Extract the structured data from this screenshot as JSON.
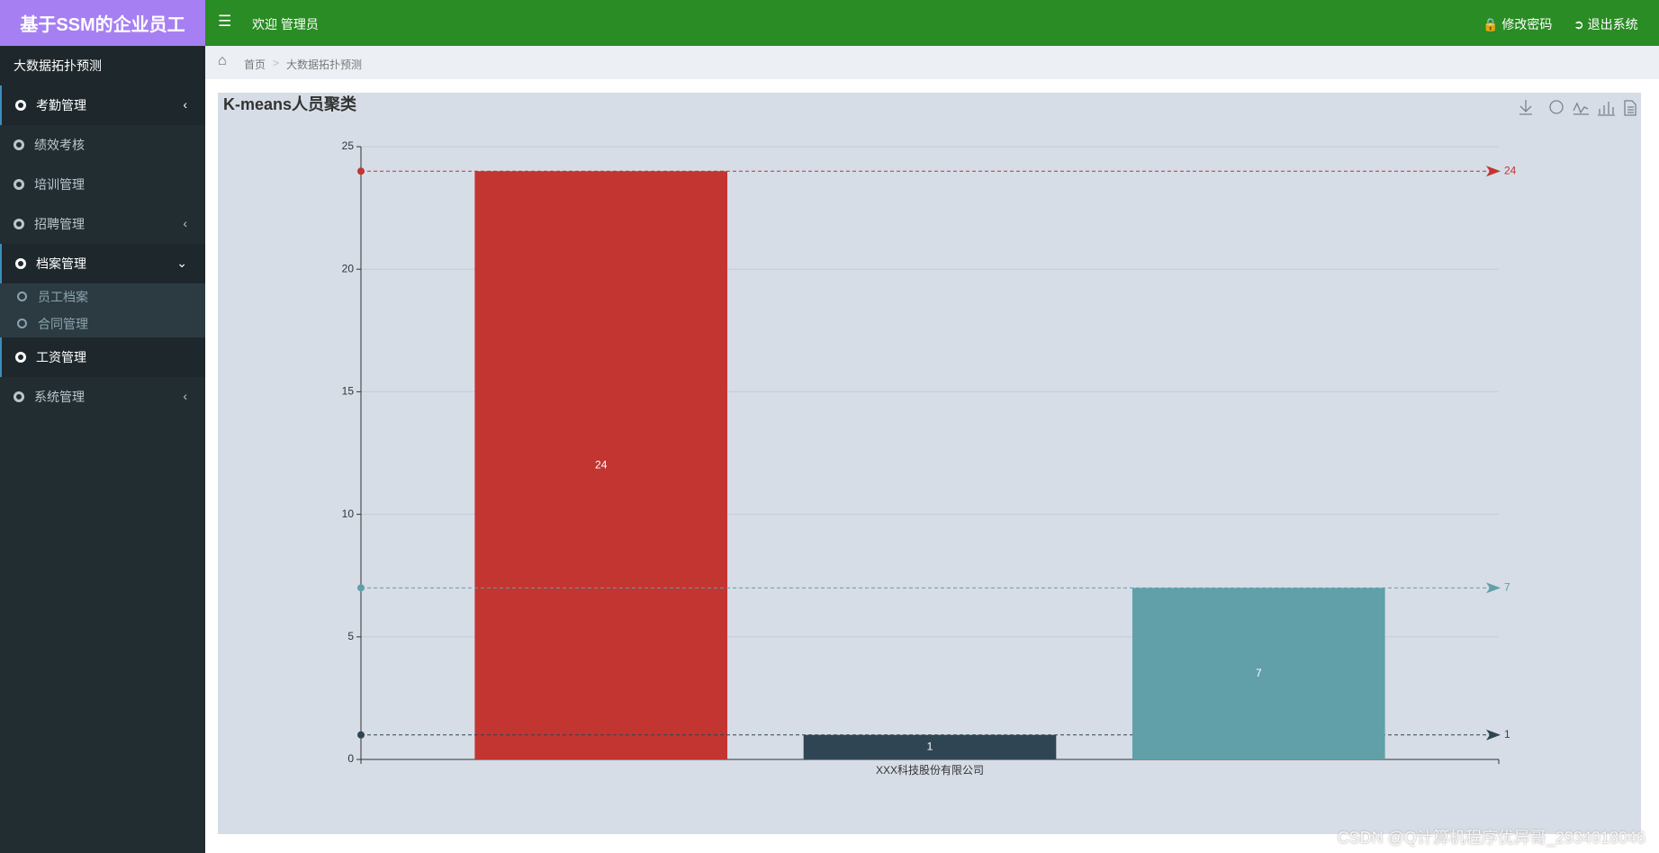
{
  "header": {
    "title": "基于SSM的企业员工",
    "welcome": "欢迎 管理员",
    "links": [
      "修改密码",
      "退出系统"
    ]
  },
  "sidebar": {
    "top": "大数据拓扑预测",
    "menu": [
      "考勤管理",
      "绩效考核",
      "培训管理",
      "招聘管理",
      "档案管理",
      "工资管理",
      "系统管理"
    ],
    "submenu": [
      "员工档案",
      "合同管理"
    ]
  },
  "breadcrumb": [
    "首页",
    "大数据拓扑预测"
  ],
  "chart_data": {
    "type": "bar",
    "title": "K-means人员聚类",
    "categories": [
      "XXX科技股份有限公司"
    ],
    "series": [
      {
        "color": "#c23531",
        "values": [
          24
        ]
      },
      {
        "color": "#2f4554",
        "values": [
          1
        ]
      },
      {
        "color": "#61a0a8",
        "values": [
          7
        ]
      }
    ],
    "ylim": [
      0,
      25
    ],
    "yticks": [
      0,
      5,
      10,
      15,
      20,
      25
    ],
    "grid": true,
    "mark_lines": true
  },
  "watermark": "CSDN @Q计算机程序优异哥_2934918046"
}
